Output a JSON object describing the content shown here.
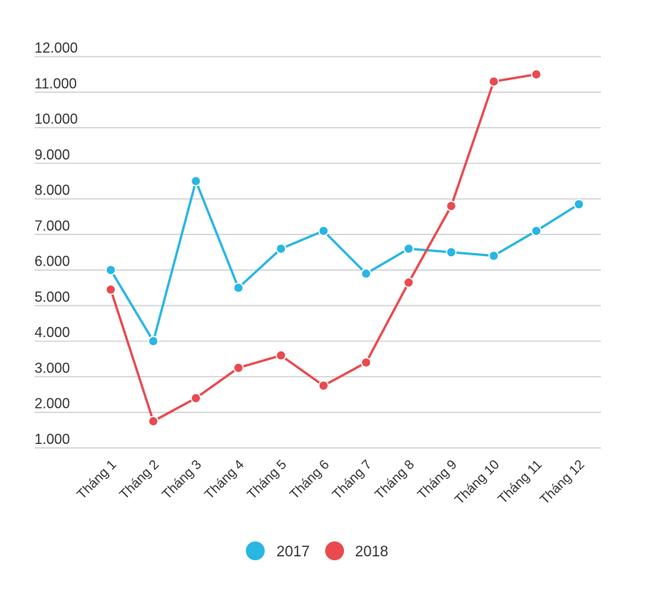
{
  "chart_data": {
    "type": "line",
    "title": "",
    "xlabel": "",
    "ylabel": "",
    "categories": [
      "Tháng 1",
      "Tháng 2",
      "Tháng 3",
      "Tháng 4",
      "Tháng 5",
      "Tháng 6",
      "Tháng 7",
      "Tháng 8",
      "Tháng 9",
      "Tháng 10",
      "Tháng 11",
      "Tháng 12"
    ],
    "yticks": [
      1000,
      2000,
      3000,
      4000,
      5000,
      6000,
      7000,
      8000,
      9000,
      10000,
      11000,
      12000
    ],
    "ytick_labels": [
      "1.000",
      "2.000",
      "3.000",
      "4.000",
      "5.000",
      "6.000",
      "7.000",
      "8.000",
      "9.000",
      "10.000",
      "11.000",
      "12.000"
    ],
    "ylim": [
      1000,
      12000
    ],
    "grid": true,
    "legend_position": "bottom-center",
    "series": [
      {
        "name": "2017",
        "color": "#29b6e3",
        "values": [
          6000,
          4000,
          8500,
          5500,
          6600,
          7100,
          5900,
          6600,
          6500,
          6400,
          7100,
          7850
        ]
      },
      {
        "name": "2018",
        "color": "#e84a4f",
        "values": [
          5450,
          1750,
          2400,
          3250,
          3600,
          2750,
          3400,
          5650,
          7800,
          11300,
          11500,
          null
        ]
      }
    ]
  }
}
